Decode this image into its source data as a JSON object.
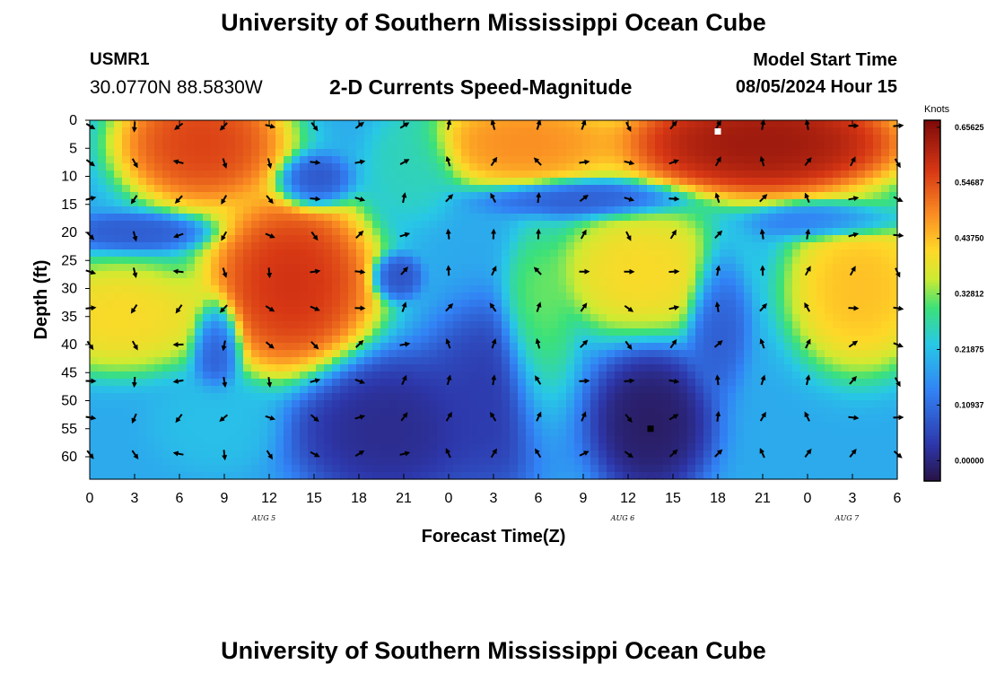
{
  "header": {
    "title": "University of Southern Mississippi Ocean Cube",
    "station_id": "USMR1",
    "coordinates": "30.0770N  88.5830W",
    "chart_title": "2-D Currents Speed-Magnitude",
    "model_start_label": "Model Start Time",
    "model_start_value": "08/05/2024 Hour 15"
  },
  "footer": {
    "title": "University of Southern Mississippi Ocean Cube"
  },
  "chart_data": {
    "type": "heatmap",
    "title": "2-D Currents Speed-Magnitude",
    "xlabel": "Forecast Time(Z)",
    "ylabel": "Depth (ft)",
    "x_tick_labels": [
      "0",
      "3",
      "6",
      "9",
      "12",
      "15",
      "18",
      "21",
      "0",
      "3",
      "6",
      "9",
      "12",
      "15",
      "18",
      "21",
      "0",
      "3",
      "6"
    ],
    "x_range_hours": [
      0,
      54
    ],
    "date_labels": [
      {
        "label": "AUG 5",
        "hour": 12
      },
      {
        "label": "AUG 6",
        "hour": 36
      },
      {
        "label": "AUG 7",
        "hour": 51
      }
    ],
    "y_ticks": [
      0,
      5,
      10,
      15,
      20,
      25,
      30,
      35,
      40,
      45,
      50,
      55,
      60
    ],
    "y_range": [
      0,
      64
    ],
    "y_inverted": true,
    "colorbar": {
      "label": "Knots",
      "range": [
        -0.04,
        0.67
      ],
      "ticks": [
        "0.65625",
        "0.54687",
        "0.43750",
        "0.32812",
        "0.21875",
        "0.10937",
        "0.00000"
      ],
      "tick_values": [
        0.65625,
        0.546875,
        0.4375,
        0.328125,
        0.21875,
        0.109375,
        0.0
      ]
    },
    "speed_blobs_knots": [
      {
        "t": 7.5,
        "d": 4,
        "rt": 3.5,
        "rd": 7,
        "v": 0.58
      },
      {
        "t": 13.5,
        "d": 29,
        "rt": 3.5,
        "rd": 10,
        "v": 0.6
      },
      {
        "t": 2,
        "d": 35,
        "rt": 4,
        "rd": 6,
        "v": 0.42
      },
      {
        "t": 29,
        "d": 4,
        "rt": 4,
        "rd": 5,
        "v": 0.5
      },
      {
        "t": 37,
        "d": 27,
        "rt": 3.5,
        "rd": 7,
        "v": 0.42
      },
      {
        "t": 45,
        "d": 4,
        "rt": 6,
        "rd": 6,
        "v": 0.66
      },
      {
        "t": 51.5,
        "d": 30,
        "rt": 3,
        "rd": 9,
        "v": 0.45
      },
      {
        "t": 30,
        "d": 40,
        "rt": 1.5,
        "rd": 12,
        "v": 0.33
      },
      {
        "t": 8.5,
        "d": 54,
        "rt": 2.5,
        "rd": 5,
        "v": 0.22
      },
      {
        "t": 20,
        "d": 55,
        "rt": 4,
        "rd": 8,
        "v": 0.0
      },
      {
        "t": 37.5,
        "d": 54,
        "rt": 2.5,
        "rd": 8,
        "v": -0.03
      },
      {
        "t": 21.5,
        "d": 8,
        "rt": 1.8,
        "rd": 6,
        "v": 0.26
      },
      {
        "t": 33,
        "d": 14,
        "rt": 4,
        "rd": 2,
        "v": 0.08
      },
      {
        "t": 20.5,
        "d": 28,
        "rt": 1,
        "rd": 2.5,
        "v": 0.06
      },
      {
        "t": 8.5,
        "d": 40,
        "rt": 1,
        "rd": 5,
        "v": 0.07
      },
      {
        "t": 3,
        "d": 20,
        "rt": 3,
        "rd": 2,
        "v": 0.08
      },
      {
        "t": 15,
        "d": 11,
        "rt": 1.5,
        "rd": 3,
        "v": 0.06
      },
      {
        "t": 42,
        "d": 35,
        "rt": 1.2,
        "rd": 8,
        "v": 0.08
      },
      {
        "t": 49.5,
        "d": 18,
        "rt": 3,
        "rd": 2,
        "v": 0.12
      },
      {
        "t": 27,
        "d": 50,
        "rt": 3,
        "rd": 10,
        "v": 0.03
      }
    ],
    "background_speed_knots": 0.19,
    "current_direction_deg_by_time": [
      {
        "hour": 0,
        "deg": 110
      },
      {
        "hour": 6,
        "deg": 250
      },
      {
        "hour": 12,
        "deg": 140
      },
      {
        "hour": 18,
        "deg": 80
      },
      {
        "hour": 24,
        "deg": 10
      },
      {
        "hour": 30,
        "deg": 350
      },
      {
        "hour": 36,
        "deg": 120
      },
      {
        "hour": 42,
        "deg": 15
      },
      {
        "hour": 48,
        "deg": 5
      },
      {
        "hour": 54,
        "deg": 120
      }
    ],
    "vector_spacing": {
      "hours": 3,
      "depth_ft": 6.5
    },
    "markers": [
      {
        "hour": 42,
        "depth_ft": 2,
        "color": "#ffffff"
      },
      {
        "hour": 37.5,
        "depth_ft": 55,
        "color": "#000000"
      }
    ]
  }
}
